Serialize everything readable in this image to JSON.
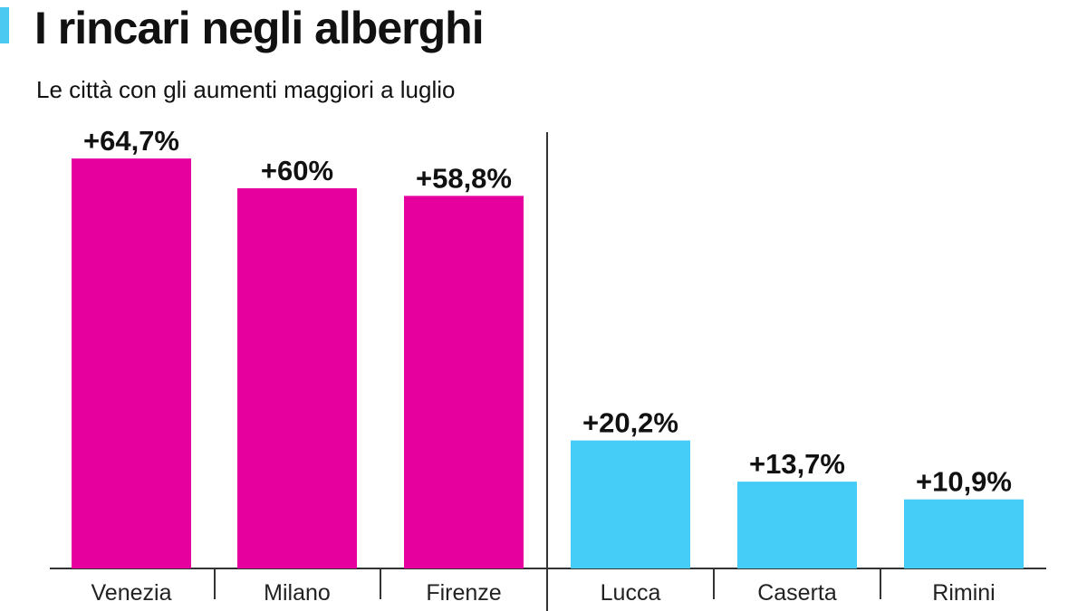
{
  "header": {
    "title": "I rincari negli alberghi",
    "subtitle": "Le città con gli aumenti maggiori a luglio",
    "accent_color": "#4cc9f0"
  },
  "chart_data": {
    "type": "bar",
    "title": "I rincari negli alberghi",
    "subtitle": "Le città con gli aumenti maggiori a luglio",
    "xlabel": "",
    "ylabel": "",
    "ylim": [
      0,
      70
    ],
    "grid": false,
    "legend": "none",
    "categories": [
      "Venezia",
      "Milano",
      "Firenze",
      "Lucca",
      "Caserta",
      "Rimini"
    ],
    "values": [
      64.7,
      60,
      58.8,
      20.2,
      13.7,
      10.9
    ],
    "data_labels": [
      "+64,7%",
      "+60%",
      "+58,8%",
      "+20,2%",
      "+13,7%",
      "+10,9%"
    ],
    "groups": [
      {
        "members": [
          "Venezia",
          "Milano",
          "Firenze"
        ],
        "color": "#e6009e"
      },
      {
        "members": [
          "Lucca",
          "Caserta",
          "Rimini"
        ],
        "color": "#45ccf7"
      }
    ]
  }
}
